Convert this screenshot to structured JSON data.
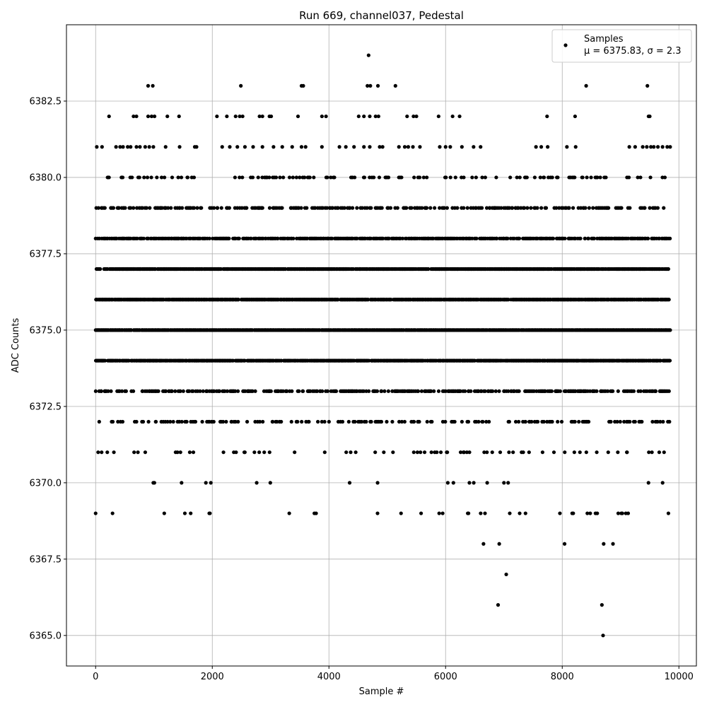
{
  "chart_data": {
    "type": "scatter",
    "title": "Run 669, channel037, Pedestal",
    "xlabel": "Sample #",
    "ylabel": "ADC Counts",
    "xlim": [
      -500,
      10300
    ],
    "ylim": [
      6364,
      6385
    ],
    "x_ticks": [
      0,
      2000,
      4000,
      6000,
      8000,
      10000
    ],
    "y_ticks": [
      6365.0,
      6367.5,
      6370.0,
      6372.5,
      6375.0,
      6377.5,
      6380.0,
      6382.5
    ],
    "x_tick_labels": [
      "0",
      "2000",
      "4000",
      "6000",
      "8000",
      "10000"
    ],
    "y_tick_labels": [
      "6365.0",
      "6367.5",
      "6370.0",
      "6372.5",
      "6375.0",
      "6377.5",
      "6380.0",
      "6382.5"
    ],
    "grid": true,
    "legend_position": "top-right",
    "marker_color": "#000000",
    "series": [
      {
        "name": "Samples",
        "legend_line2": "μ = 6375.83, σ = 2.3",
        "points": [
          [
            4680,
            6384
          ],
          [
            900,
            6383
          ],
          [
            980,
            6383
          ],
          [
            2490,
            6383
          ],
          [
            3530,
            6383
          ],
          [
            3560,
            6383
          ],
          [
            4660,
            6383
          ],
          [
            4710,
            6383
          ],
          [
            4840,
            6383
          ],
          [
            5140,
            6383
          ],
          [
            8410,
            6383
          ],
          [
            9460,
            6383
          ],
          [
            230,
            6382
          ],
          [
            650,
            6382
          ],
          [
            700,
            6382
          ],
          [
            900,
            6382
          ],
          [
            960,
            6382
          ],
          [
            1010,
            6382
          ],
          [
            1230,
            6382
          ],
          [
            1430,
            6382
          ],
          [
            2080,
            6382
          ],
          [
            2250,
            6382
          ],
          [
            2400,
            6382
          ],
          [
            2470,
            6382
          ],
          [
            2520,
            6382
          ],
          [
            2810,
            6382
          ],
          [
            2860,
            6382
          ],
          [
            2980,
            6382
          ],
          [
            3010,
            6382
          ],
          [
            3470,
            6382
          ],
          [
            3880,
            6382
          ],
          [
            3950,
            6382
          ],
          [
            4510,
            6382
          ],
          [
            4600,
            6382
          ],
          [
            4700,
            6382
          ],
          [
            4800,
            6382
          ],
          [
            4850,
            6382
          ],
          [
            5340,
            6382
          ],
          [
            5450,
            6382
          ],
          [
            5500,
            6382
          ],
          [
            5880,
            6382
          ],
          [
            6120,
            6382
          ],
          [
            6240,
            6382
          ],
          [
            7740,
            6382
          ],
          [
            8220,
            6382
          ],
          [
            9480,
            6382
          ],
          [
            9500,
            6382
          ],
          [
            20,
            6381
          ],
          [
            110,
            6381
          ],
          [
            350,
            6381
          ],
          [
            420,
            6381
          ],
          [
            470,
            6381
          ],
          [
            550,
            6381
          ],
          [
            600,
            6381
          ],
          [
            700,
            6381
          ],
          [
            760,
            6381
          ],
          [
            850,
            6381
          ],
          [
            920,
            6381
          ],
          [
            990,
            6381
          ],
          [
            1200,
            6381
          ],
          [
            1440,
            6381
          ],
          [
            1700,
            6381
          ],
          [
            1730,
            6381
          ],
          [
            2170,
            6381
          ],
          [
            2300,
            6381
          ],
          [
            2430,
            6381
          ],
          [
            2560,
            6381
          ],
          [
            2700,
            6381
          ],
          [
            2860,
            6381
          ],
          [
            3050,
            6381
          ],
          [
            3200,
            6381
          ],
          [
            3370,
            6381
          ],
          [
            3530,
            6381
          ],
          [
            3600,
            6381
          ],
          [
            3880,
            6381
          ],
          [
            4180,
            6381
          ],
          [
            4290,
            6381
          ],
          [
            4430,
            6381
          ],
          [
            4600,
            6381
          ],
          [
            4700,
            6381
          ],
          [
            4870,
            6381
          ],
          [
            4920,
            6381
          ],
          [
            5200,
            6381
          ],
          [
            5300,
            6381
          ],
          [
            5360,
            6381
          ],
          [
            5440,
            6381
          ],
          [
            5560,
            6381
          ],
          [
            5900,
            6381
          ],
          [
            6080,
            6381
          ],
          [
            6280,
            6381
          ],
          [
            6480,
            6381
          ],
          [
            6600,
            6381
          ],
          [
            7550,
            6381
          ],
          [
            7640,
            6381
          ],
          [
            7750,
            6381
          ],
          [
            8080,
            6381
          ],
          [
            8230,
            6381
          ],
          [
            9150,
            6381
          ],
          [
            9250,
            6381
          ],
          [
            9380,
            6381
          ],
          [
            9450,
            6381
          ],
          [
            9520,
            6381
          ],
          [
            9570,
            6381
          ],
          [
            9640,
            6381
          ],
          [
            9720,
            6381
          ],
          [
            9800,
            6381
          ],
          [
            9850,
            6381
          ],
          [
            6000,
            6381
          ],
          [
            9760,
            6379.99
          ]
        ],
        "band_levels": [
          6369,
          6370,
          6371,
          6372,
          6373,
          6374,
          6375,
          6376,
          6377,
          6378,
          6379,
          6380
        ],
        "band_density": [
          0.01,
          0.03,
          0.08,
          0.18,
          0.45,
          0.85,
          0.95,
          0.92,
          0.85,
          0.6,
          0.3,
          0.15
        ],
        "band_x_range": [
          0,
          9850
        ],
        "sparse_points": [
          [
            0,
            6369
          ],
          [
            290,
            6369
          ],
          [
            1530,
            6369
          ],
          [
            1630,
            6369
          ],
          [
            1960,
            6369
          ],
          [
            3320,
            6369
          ],
          [
            3750,
            6369
          ],
          [
            3780,
            6369
          ],
          [
            5580,
            6369
          ],
          [
            5890,
            6369
          ],
          [
            5950,
            6369
          ],
          [
            6380,
            6369
          ],
          [
            7100,
            6369
          ],
          [
            7270,
            6369
          ],
          [
            7370,
            6369
          ],
          [
            7960,
            6369
          ],
          [
            8430,
            6369
          ],
          [
            8480,
            6369
          ],
          [
            8570,
            6369
          ],
          [
            8600,
            6369
          ],
          [
            8960,
            6369
          ],
          [
            9030,
            6369
          ],
          [
            9090,
            6369
          ],
          [
            9130,
            6369
          ],
          [
            9820,
            6369
          ],
          [
            6650,
            6368
          ],
          [
            6920,
            6368
          ],
          [
            8040,
            6368
          ],
          [
            8710,
            6368
          ],
          [
            8870,
            6368
          ],
          [
            7040,
            6367
          ],
          [
            6900,
            6366
          ],
          [
            8680,
            6366
          ],
          [
            8700,
            6365
          ]
        ]
      }
    ]
  }
}
